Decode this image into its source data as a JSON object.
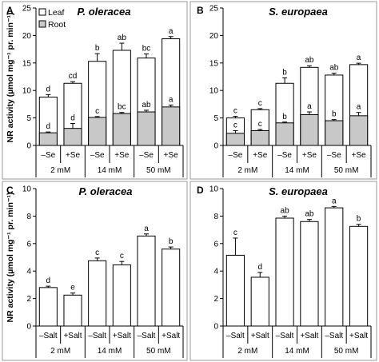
{
  "chart_data": [
    {
      "panel": "A",
      "title": "P. oleracea",
      "type": "bar",
      "stacked": true,
      "ylabel": "NR activity (µmol mg⁻¹ pr. min⁻¹)",
      "ylim": [
        0,
        25
      ],
      "yticks": [
        0,
        5,
        10,
        15,
        20,
        25
      ],
      "categories": [
        "–Se",
        "+Se",
        "–Se",
        "+Se",
        "–Se",
        "+Se"
      ],
      "groups": [
        "2 mM",
        "14 mM",
        "50 mM"
      ],
      "legend": [
        "Leaf",
        "Root"
      ],
      "series": [
        {
          "name": "Root",
          "values": [
            2.3,
            3.1,
            5.1,
            5.8,
            6.1,
            7.0
          ],
          "errors": [
            0.15,
            0.9,
            0.15,
            0.2,
            0.3,
            0.35
          ],
          "labels": [
            "d",
            "d",
            "c",
            "bc",
            "ab",
            "a"
          ]
        },
        {
          "name": "Leaf",
          "totals": [
            8.8,
            11.3,
            15.3,
            17.3,
            15.9,
            19.4
          ],
          "errors": [
            0.45,
            0.3,
            1.4,
            1.3,
            0.75,
            0.4
          ],
          "labels": [
            "d",
            "cd",
            "b",
            "ab",
            "bc",
            "a"
          ]
        }
      ]
    },
    {
      "panel": "B",
      "title": "S. europaea",
      "type": "bar",
      "stacked": true,
      "ylim": [
        0,
        25
      ],
      "yticks": [
        0,
        5,
        10,
        15,
        20,
        25
      ],
      "categories": [
        "–Se",
        "+Se",
        "–Se",
        "+Se",
        "–Se",
        "+Se"
      ],
      "groups": [
        "2 mM",
        "14 mM",
        "50 mM"
      ],
      "series": [
        {
          "name": "Root",
          "values": [
            2.2,
            2.7,
            4.1,
            5.6,
            4.5,
            5.4
          ],
          "errors": [
            0.5,
            0.2,
            0.15,
            0.5,
            0.2,
            0.6
          ],
          "labels": [
            "c",
            "c",
            "b",
            "a",
            "b",
            "a"
          ]
        },
        {
          "name": "Leaf",
          "totals": [
            5.0,
            6.5,
            11.3,
            14.2,
            12.8,
            14.7
          ],
          "errors": [
            0.3,
            0.2,
            1.0,
            0.3,
            0.35,
            0.25
          ],
          "labels": [
            "c",
            "c",
            "b",
            "ab",
            "ab",
            "a"
          ]
        }
      ]
    },
    {
      "panel": "C",
      "title": "P. oleracea",
      "type": "bar",
      "ylabel": "NR activity (µmol mg⁻¹ pr. min⁻¹)",
      "ylim": [
        0,
        10
      ],
      "yticks": [
        0,
        2,
        4,
        6,
        8,
        10
      ],
      "categories": [
        "–Salt",
        "+Salt",
        "–Salt",
        "+Salt",
        "–Salt",
        "+Salt"
      ],
      "groups": [
        "2 mM",
        "14 mM",
        "50 mM"
      ],
      "values": [
        2.8,
        2.25,
        4.75,
        4.45,
        6.55,
        5.6
      ],
      "errors": [
        0.1,
        0.15,
        0.2,
        0.25,
        0.15,
        0.15
      ],
      "labels": [
        "d",
        "e",
        "c",
        "c",
        "a",
        "b"
      ]
    },
    {
      "panel": "D",
      "title": "S. europaea",
      "type": "bar",
      "ylim": [
        0,
        10
      ],
      "yticks": [
        0,
        2,
        4,
        6,
        8,
        10
      ],
      "categories": [
        "–Salt",
        "+Salt",
        "–Salt",
        "+Salt",
        "–Salt",
        "+Salt"
      ],
      "groups": [
        "2 mM",
        "14 mM",
        "50 mM"
      ],
      "values": [
        5.15,
        3.55,
        7.85,
        7.6,
        8.6,
        7.25
      ],
      "errors": [
        1.25,
        0.35,
        0.15,
        0.15,
        0.1,
        0.15
      ],
      "labels": [
        "c",
        "d",
        "ab",
        "ab",
        "a",
        "b"
      ]
    }
  ],
  "colors": {
    "leaf": "#ffffff",
    "root": "#c8c8c8",
    "axis": "#000000"
  }
}
